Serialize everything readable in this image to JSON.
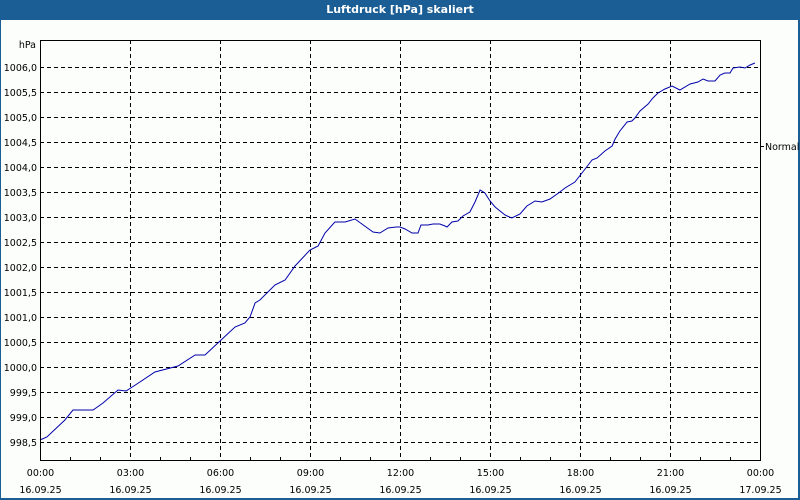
{
  "window": {
    "title": "Luftdruck [hPa] skaliert",
    "accent_color": "#1b5e96",
    "line_color": "#0000aa"
  },
  "chart_data": {
    "type": "line",
    "title": "Luftdruck [hPa] skaliert",
    "ylabel": "hPa",
    "xlabel": "",
    "ylim": [
      998.1,
      1006.5
    ],
    "xlim_hours": [
      0,
      24
    ],
    "grid": true,
    "grid_style": "dashed",
    "legend": null,
    "y_ticks": [
      "1006,0",
      "1005,5",
      "1005,0",
      "1004,5",
      "1004,0",
      "1003,5",
      "1003,0",
      "1002,5",
      "1002,0",
      "1001,5",
      "1001,0",
      "1000,5",
      "1000,0",
      "999,5",
      "999,0",
      "998,5"
    ],
    "y_tick_values": [
      1006.0,
      1005.5,
      1005.0,
      1004.5,
      1004.0,
      1003.5,
      1003.0,
      1002.5,
      1002.0,
      1001.5,
      1001.0,
      1000.5,
      1000.0,
      999.5,
      999.0,
      998.5
    ],
    "x_ticks": [
      {
        "time": "00:00",
        "date": "16.09.25"
      },
      {
        "time": "03:00",
        "date": "16.09.25"
      },
      {
        "time": "06:00",
        "date": "16.09.25"
      },
      {
        "time": "09:00",
        "date": "16.09.25"
      },
      {
        "time": "12:00",
        "date": "16.09.25"
      },
      {
        "time": "15:00",
        "date": "16.09.25"
      },
      {
        "time": "18:00",
        "date": "16.09.25"
      },
      {
        "time": "21:00",
        "date": "16.09.25"
      },
      {
        "time": "00:00",
        "date": "17.09.25"
      }
    ],
    "annotations": [
      {
        "label": "Normal",
        "value": 1004.42,
        "position": "right"
      }
    ],
    "series": [
      {
        "name": "Luftdruck",
        "x_hours": [
          0,
          0.23,
          0.83,
          1.1,
          1.77,
          2.1,
          2.6,
          2.87,
          3.33,
          3.83,
          4.6,
          5.17,
          5.5,
          6.0,
          6.5,
          6.83,
          7.0,
          7.17,
          7.33,
          7.83,
          8.17,
          8.5,
          9.0,
          9.27,
          9.5,
          9.83,
          10.17,
          10.5,
          10.73,
          11.1,
          11.33,
          11.6,
          11.87,
          12.0,
          12.17,
          12.4,
          12.6,
          12.7,
          12.93,
          13.1,
          13.33,
          13.5,
          13.57,
          13.73,
          13.93,
          14.1,
          14.33,
          14.5,
          14.67,
          14.83,
          15.0,
          15.17,
          15.5,
          15.57,
          15.73,
          16.0,
          16.23,
          16.5,
          16.73,
          17.0,
          17.33,
          17.5,
          17.83,
          18.17,
          18.4,
          18.57,
          18.83,
          19.07,
          19.17,
          19.33,
          19.57,
          19.73,
          19.83,
          20.0,
          20.27,
          20.43,
          20.6,
          20.83,
          21.07,
          21.33,
          21.67,
          21.93,
          22.1,
          22.27,
          22.5,
          22.67,
          22.83,
          23.0,
          23.1,
          23.33,
          23.5,
          23.67,
          23.83
        ],
        "values": [
          998.54,
          998.6,
          998.94,
          999.14,
          999.14,
          999.28,
          999.54,
          999.52,
          999.7,
          999.9,
          1000.02,
          1000.24,
          1000.24,
          1000.52,
          1000.8,
          1000.88,
          1001.0,
          1001.28,
          1001.34,
          1001.64,
          1001.74,
          1002.02,
          1002.34,
          1002.42,
          1002.68,
          1002.9,
          1002.9,
          1002.96,
          1002.86,
          1002.7,
          1002.68,
          1002.78,
          1002.8,
          1002.8,
          1002.76,
          1002.68,
          1002.68,
          1002.84,
          1002.84,
          1002.86,
          1002.86,
          1002.82,
          1002.8,
          1002.9,
          1002.92,
          1003.02,
          1003.1,
          1003.3,
          1003.54,
          1003.48,
          1003.32,
          1003.2,
          1003.04,
          1003.02,
          1002.98,
          1003.06,
          1003.22,
          1003.32,
          1003.3,
          1003.36,
          1003.5,
          1003.58,
          1003.7,
          1003.96,
          1004.14,
          1004.18,
          1004.32,
          1004.42,
          1004.56,
          1004.72,
          1004.9,
          1004.92,
          1004.98,
          1005.12,
          1005.26,
          1005.38,
          1005.48,
          1005.56,
          1005.62,
          1005.54,
          1005.66,
          1005.7,
          1005.76,
          1005.72,
          1005.72,
          1005.84,
          1005.88,
          1005.88,
          1005.98,
          1006.0,
          1005.98,
          1006.04,
          1006.08
        ]
      }
    ]
  }
}
